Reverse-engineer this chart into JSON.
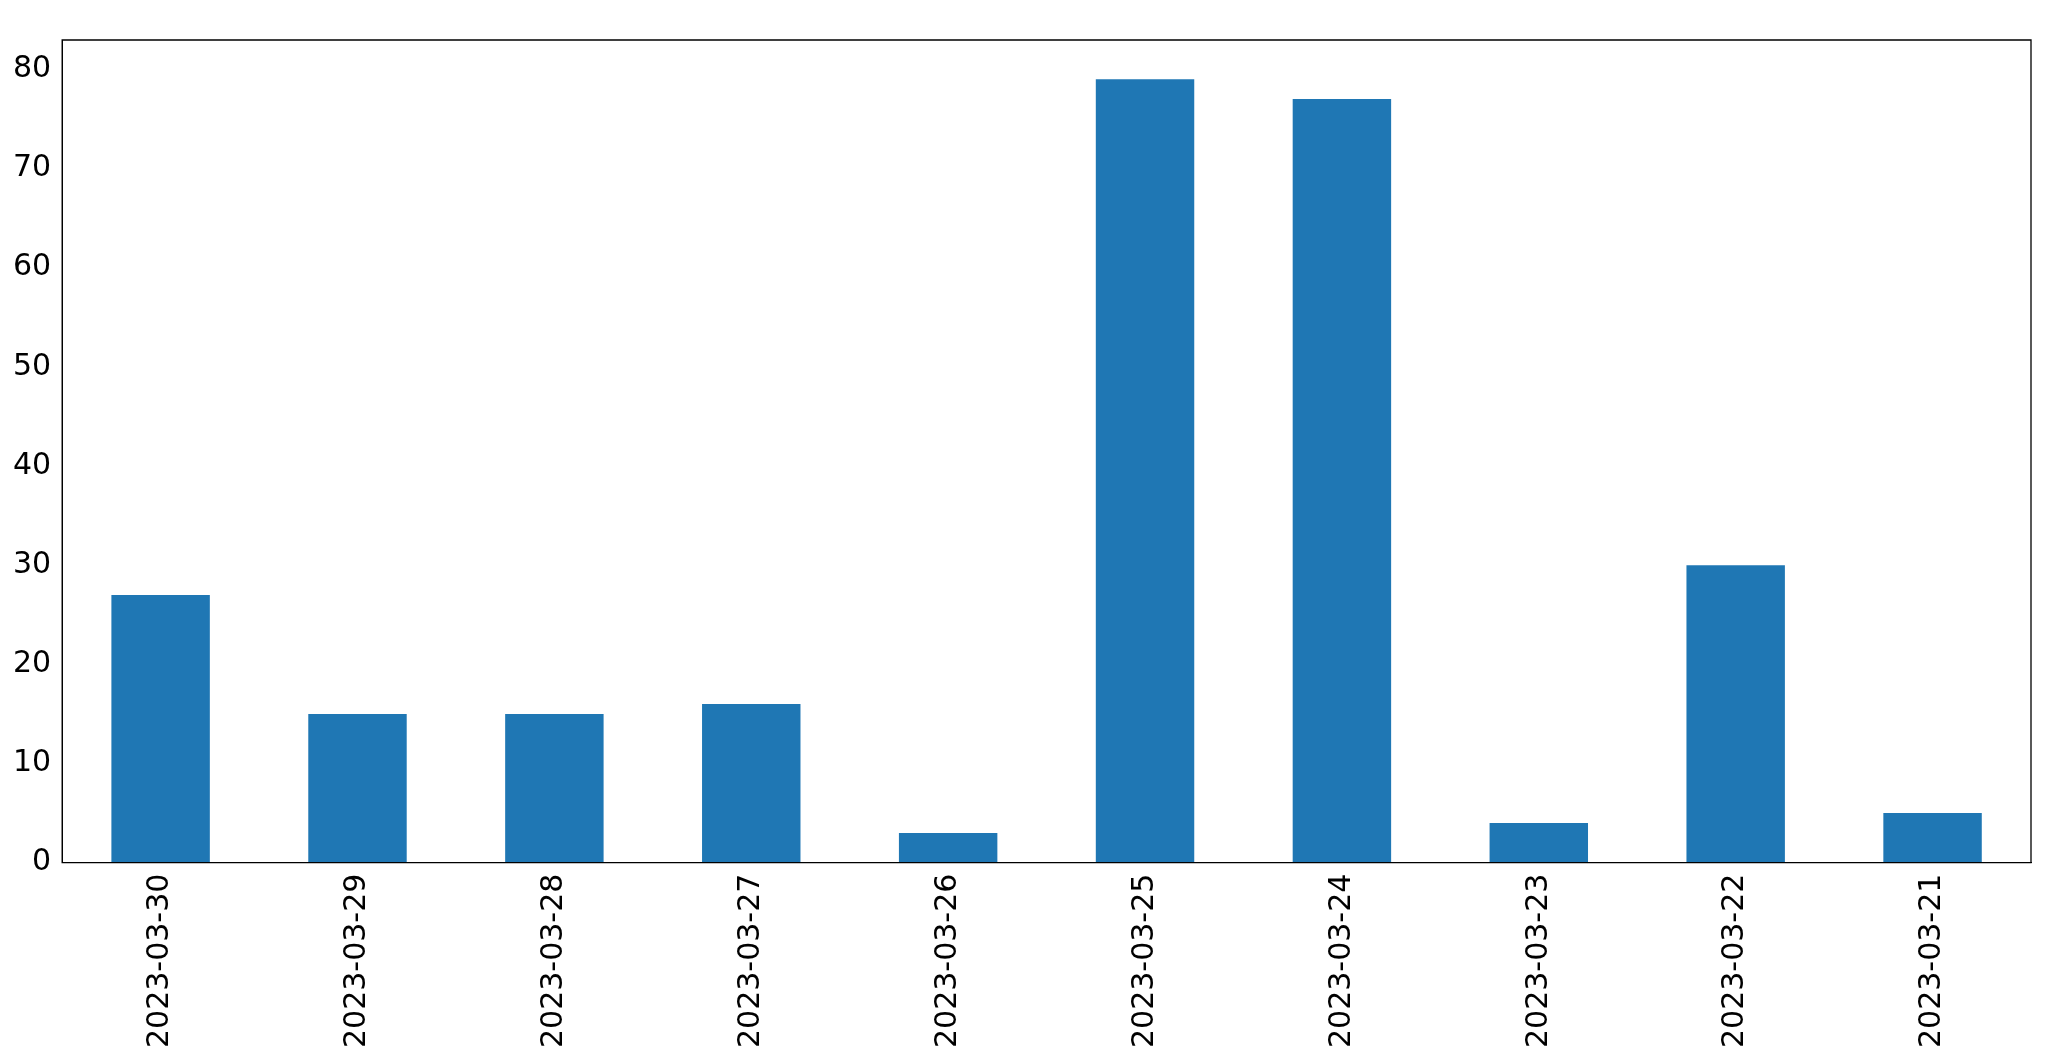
{
  "chart_data": {
    "type": "bar",
    "categories": [
      "2023-03-30",
      "2023-03-29",
      "2023-03-28",
      "2023-03-27",
      "2023-03-26",
      "2023-03-25",
      "2023-03-24",
      "2023-03-23",
      "2023-03-22",
      "2023-03-21"
    ],
    "values": [
      27,
      15,
      15,
      16,
      3,
      79,
      77,
      4,
      30,
      5
    ],
    "color": "#1f77b4",
    "ylim": [
      0,
      82.95
    ],
    "yticks": [
      0,
      10,
      20,
      30,
      40,
      50,
      60,
      70,
      80
    ],
    "grid": false,
    "legend": false
  }
}
